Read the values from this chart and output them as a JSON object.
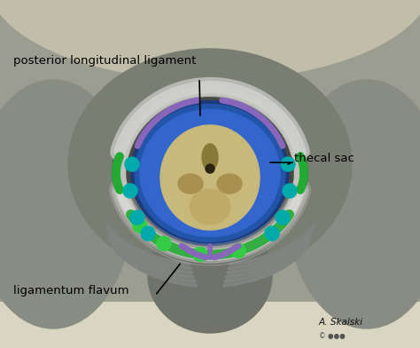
{
  "bg_top_color": "#c8c5b0",
  "bg_color": "#8a8c80",
  "labels": {
    "posterior_longitudinal_ligament": "posterior longitudinal ligament",
    "thecal_sac": "thecal sac",
    "ligamentum_flavum": "ligamentum flavum"
  },
  "green_color": "#33cc44",
  "cyan_color": "#00bbbb",
  "purple_color": "#9977cc",
  "bone_color": "#d4c898",
  "canal_outer_color": "#555a55",
  "canal_white_color": "#c8c8c8",
  "dura_color": "#4a4a4a",
  "csf_dark_color": "#1a3a88",
  "csf_bright_color": "#2255cc",
  "cord_color": "#c8b87a",
  "cord_dark_color": "#a09050",
  "vertebra_body_color": "#7a7d75",
  "lamina_color": "#888c85",
  "pedicle_color": "#9a9d95",
  "white_band_color": "#c5c7c2",
  "spinous_color": "#6a6d65"
}
